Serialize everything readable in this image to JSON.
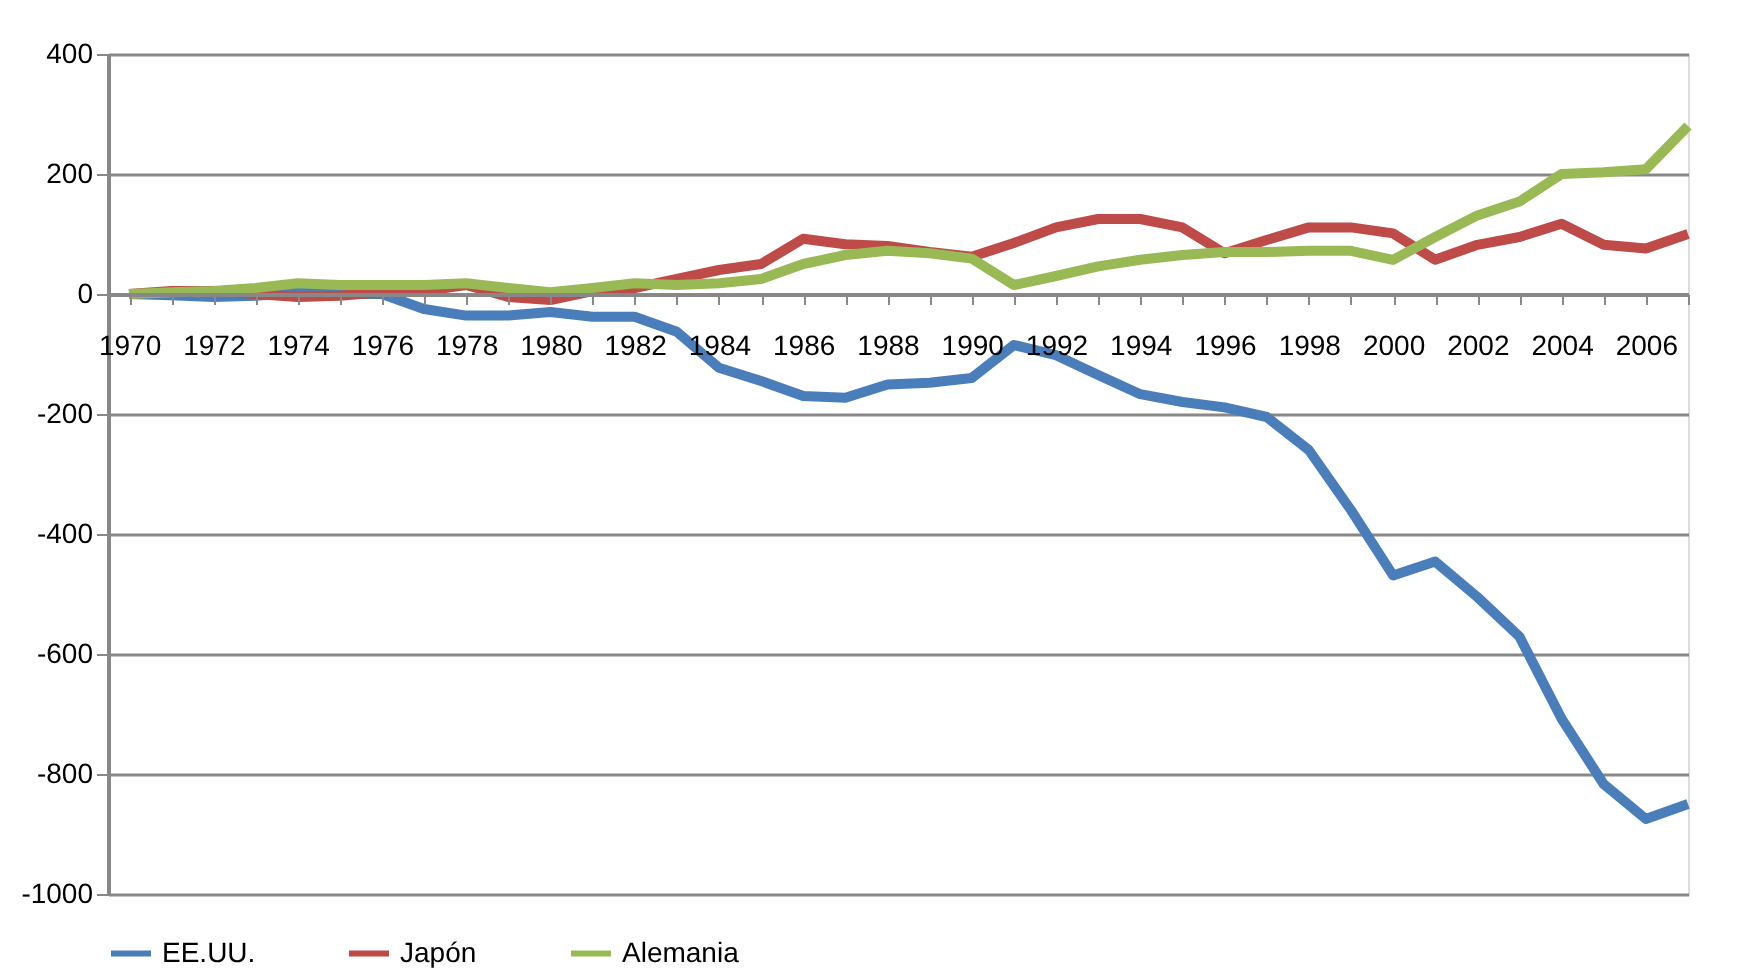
{
  "chart_data": {
    "type": "line",
    "x": [
      1970,
      1971,
      1972,
      1973,
      1974,
      1975,
      1976,
      1977,
      1978,
      1979,
      1980,
      1981,
      1982,
      1983,
      1984,
      1985,
      1986,
      1987,
      1988,
      1989,
      1990,
      1991,
      1992,
      1993,
      1994,
      1995,
      1996,
      1997,
      1998,
      1999,
      2000,
      2001,
      2002,
      2003,
      2004,
      2005,
      2006,
      2007
    ],
    "series": [
      {
        "name": "EE.UU.",
        "color": "#4a7ebb",
        "values": [
          0,
          -2,
          -5,
          -3,
          2,
          0,
          0,
          -25,
          -36,
          -36,
          -30,
          -38,
          -38,
          -63,
          -123,
          -145,
          -170,
          -173,
          -151,
          -148,
          -140,
          -85,
          -102,
          -135,
          -167,
          -180,
          -189,
          -205,
          -260,
          -360,
          -469,
          -446,
          -505,
          -571,
          -708,
          -817,
          -875,
          -850
        ]
      },
      {
        "name": "Japón",
        "color": "#be4b48",
        "values": [
          0,
          5,
          5,
          0,
          -5,
          -3,
          3,
          5,
          15,
          -5,
          -10,
          5,
          10,
          25,
          40,
          50,
          92,
          83,
          80,
          70,
          62,
          85,
          111,
          125,
          125,
          111,
          68,
          90,
          111,
          111,
          101,
          57,
          82,
          95,
          117,
          82,
          76,
          100
        ]
      },
      {
        "name": "Alemania",
        "color": "#98b954",
        "values": [
          0,
          3,
          5,
          10,
          18,
          15,
          15,
          15,
          18,
          10,
          3,
          10,
          18,
          15,
          18,
          25,
          50,
          65,
          72,
          68,
          59,
          15,
          30,
          46,
          57,
          65,
          70,
          70,
          72,
          72,
          57,
          95,
          131,
          154,
          200,
          203,
          208,
          280
        ]
      }
    ],
    "xlim": [
      1969.5,
      2007
    ],
    "xticks": [
      1970,
      {
        "value": 1971,
        "label": null
      },
      1972,
      {
        "value": 1973,
        "label": null
      },
      1974,
      {
        "value": 1975,
        "label": null
      },
      1976,
      {
        "value": 1977,
        "label": null
      },
      1978,
      {
        "value": 1979,
        "label": null
      },
      1980,
      {
        "value": 1981,
        "label": null
      },
      1982,
      {
        "value": 1983,
        "label": null
      },
      1984,
      {
        "value": 1985,
        "label": null
      },
      1986,
      {
        "value": 1987,
        "label": null
      },
      1988,
      {
        "value": 1989,
        "label": null
      },
      1990,
      {
        "value": 1991,
        "label": null
      },
      1992,
      {
        "value": 1993,
        "label": null
      },
      1994,
      {
        "value": 1995,
        "label": null
      },
      1996,
      {
        "value": 1997,
        "label": null
      },
      1998,
      {
        "value": 1999,
        "label": null
      },
      2000,
      {
        "value": 2001,
        "label": null
      },
      2002,
      {
        "value": 2003,
        "label": null
      },
      2004,
      {
        "value": 2005,
        "label": null
      },
      2006,
      {
        "value": 2007,
        "label": null
      }
    ],
    "ylim": [
      -1000,
      400
    ],
    "yticks": [
      -1000,
      -800,
      -600,
      -400,
      -200,
      0,
      200,
      400
    ],
    "grid": "y",
    "legend": "bottom",
    "marker": "none",
    "line_style": "solid"
  }
}
